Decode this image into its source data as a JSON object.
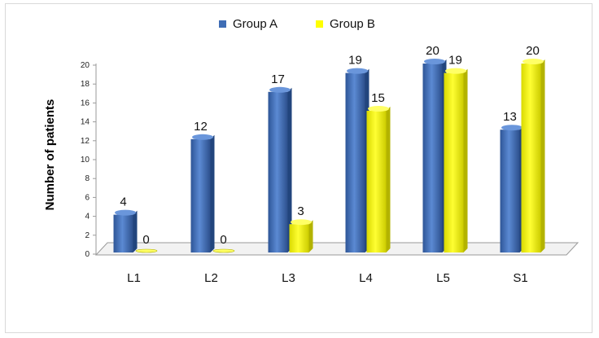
{
  "chart_data": {
    "type": "bar",
    "categories": [
      "L1",
      "L2",
      "L3",
      "L4",
      "L5",
      "S1"
    ],
    "series": [
      {
        "name": "Group A",
        "values": [
          4,
          12,
          17,
          19,
          20,
          13
        ],
        "color": "#3f6db5"
      },
      {
        "name": "Group B",
        "values": [
          0,
          0,
          3,
          15,
          19,
          20
        ],
        "color": "#ffff00"
      }
    ],
    "ylabel": "Number of patients",
    "xlabel": "",
    "ylim": [
      0,
      20
    ],
    "yticks": [
      0,
      2,
      4,
      6,
      8,
      10,
      12,
      14,
      16,
      18,
      20
    ],
    "legend_position": "top",
    "grid": false
  }
}
